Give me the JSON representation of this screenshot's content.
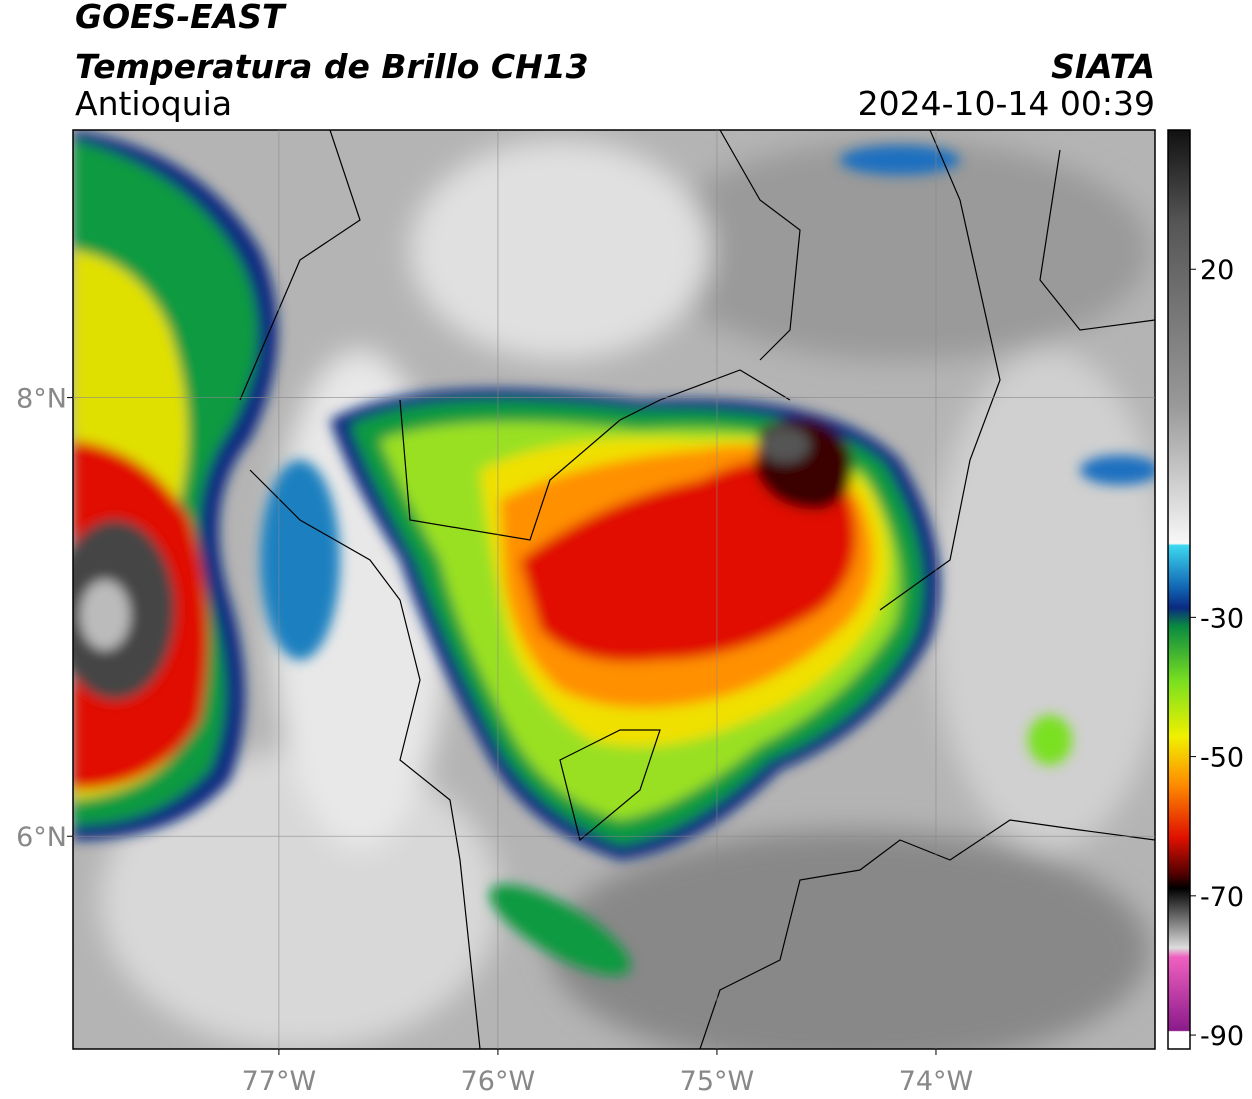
{
  "header": {
    "title": "GOES-EAST",
    "subtitle": "Temperatura de Brillo CH13",
    "region": "Antioquia",
    "source": "SIATA",
    "datetime": "2024-10-14 00:39"
  },
  "map": {
    "xlim": [
      -77.94,
      -73.0
    ],
    "ylim": [
      5.03,
      9.22
    ],
    "xticks": [
      {
        "value": -77,
        "label": "77°W"
      },
      {
        "value": -76,
        "label": "76°W"
      },
      {
        "value": -75,
        "label": "75°W"
      },
      {
        "value": -74,
        "label": "74°W"
      }
    ],
    "yticks": [
      {
        "value": 6,
        "label": "6°N"
      },
      {
        "value": 8,
        "label": "8°N"
      }
    ],
    "grid": true
  },
  "colorbar": {
    "lim": [
      -92,
      40
    ],
    "ticks": [
      20,
      -30,
      -50,
      -70,
      -90
    ]
  }
}
